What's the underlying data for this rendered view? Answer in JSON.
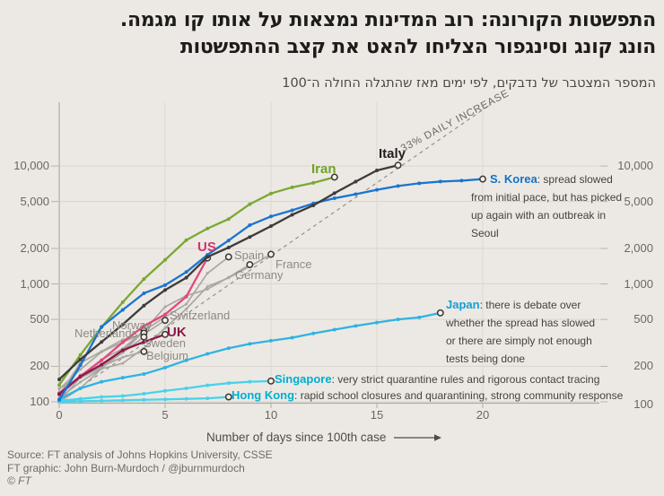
{
  "header": {
    "title_line1": "התפשטות הקורונה: רוב המדינות נמצאות על אותו קו מגמה.",
    "title_line2": "הונג קונג וסינגפור הצליחו להאט את קצב ההתפשטות",
    "subtitle": "המספר המצטבר של נדבקים, לפי ימים מאז שהתגלה החולה ה־100"
  },
  "source": {
    "line1": "Source: FT analysis of Johns Hopkins University, CSSE",
    "line2": "FT graphic: John Burn-Murdoch / @jburnmurdoch",
    "line3": "© FT"
  },
  "chart_data": {
    "type": "line",
    "y_scale": "log",
    "xlabel": "Number of days since 100th case",
    "xlim": [
      0,
      25.5
    ],
    "ylim": [
      100,
      36000
    ],
    "grid": true,
    "x_ticks": [
      {
        "v": 0,
        "label": "0"
      },
      {
        "v": 5,
        "label": "5"
      },
      {
        "v": 10,
        "label": "10"
      },
      {
        "v": 15,
        "label": "15"
      },
      {
        "v": 20,
        "label": "20"
      }
    ],
    "y_ticks": [
      {
        "v": 100,
        "label": "100"
      },
      {
        "v": 200,
        "label": "200"
      },
      {
        "v": 500,
        "label": "500"
      },
      {
        "v": 1000,
        "label": "1,000"
      },
      {
        "v": 2000,
        "label": "2,000"
      },
      {
        "v": 5000,
        "label": "5,000"
      },
      {
        "v": 10000,
        "label": "10,000"
      }
    ],
    "reference_line": {
      "label": "33% DAILY INCREASE",
      "daily_growth_pct": 33,
      "start_value": 100,
      "start_day": 0
    },
    "series": [
      {
        "id": "spain",
        "label": "Spain",
        "muted": true,
        "color": "#aaa7a2",
        "label_color": "#8d8983",
        "values": [
          120,
          165,
          228,
          282,
          401,
          525,
          674,
          1231,
          1695
        ]
      },
      {
        "id": "france",
        "label": "France",
        "muted": true,
        "color": "#aaa7a2",
        "label_color": "#8d8983",
        "values": [
          100,
          130,
          191,
          212,
          285,
          423,
          613,
          949,
          1126,
          1412,
          1784
        ]
      },
      {
        "id": "germany",
        "label": "Germany",
        "muted": true,
        "color": "#aaa7a2",
        "label_color": "#8d8983",
        "values": [
          130,
          159,
          196,
          262,
          400,
          639,
          795,
          902,
          1139,
          1457
        ]
      },
      {
        "id": "switzerland",
        "label": "Switzerland",
        "muted": true,
        "color": "#aaa7a2",
        "label_color": "#8d8983",
        "values": [
          114,
          214,
          268,
          337,
          374,
          491
        ]
      },
      {
        "id": "norway",
        "label": "Norway",
        "muted": true,
        "color": "#aaa7a2",
        "label_color": "#8d8983",
        "values": [
          108,
          147,
          192,
          277,
          400
        ]
      },
      {
        "id": "netherlands",
        "label": "Netherlands",
        "muted": true,
        "color": "#aaa7a2",
        "label_color": "#8d8983",
        "values": [
          128,
          188,
          265,
          321,
          382
        ]
      },
      {
        "id": "sweden",
        "label": "Sweden",
        "muted": true,
        "color": "#aaa7a2",
        "label_color": "#8d8983",
        "values": [
          101,
          161,
          203,
          261,
          355
        ]
      },
      {
        "id": "belgium",
        "label": "Belgium",
        "muted": true,
        "color": "#aaa7a2",
        "label_color": "#8d8983",
        "values": [
          109,
          169,
          200,
          239,
          267
        ]
      },
      {
        "id": "hongkong",
        "label": "Hong Kong",
        "color": "#49d2ea",
        "label_color": "#00afd0",
        "note": "rapid school closures and quarantining, strong community response",
        "values": [
          100,
          101,
          102,
          103,
          104,
          105,
          106,
          107,
          110
        ]
      },
      {
        "id": "singapore",
        "label": "Singapore",
        "color": "#49d2ea",
        "label_color": "#00afd0",
        "note": "very strict quarantine rules and rigorous contact tracing",
        "values": [
          102,
          106,
          110,
          112,
          117,
          124,
          130,
          138,
          144,
          148,
          150
        ]
      },
      {
        "id": "japan",
        "label": "Japan",
        "color": "#2fb3e2",
        "label_color": "#12a0d6",
        "note": "there is debate over whether the spread has slowed or there are simply not enough tests being done",
        "values": [
          105,
          130,
          148,
          160,
          172,
          195,
          225,
          255,
          285,
          310,
          330,
          350,
          380,
          410,
          440,
          470,
          500,
          520,
          568
        ]
      },
      {
        "id": "iran",
        "label": "Iran",
        "color": "#7ba832",
        "label_color": "#71a327",
        "values": [
          139,
          250,
          430,
          700,
          1100,
          1600,
          2350,
          2950,
          3550,
          4750,
          5850,
          6600,
          7200,
          8050
        ]
      },
      {
        "id": "us",
        "label": "US",
        "color": "#e2477e",
        "label_color": "#d2336e",
        "values": [
          118,
          165,
          225,
          320,
          440,
          550,
          780,
          1660
        ]
      },
      {
        "id": "uk",
        "label": "UK",
        "color": "#8e1847",
        "label_color": "#8e1847",
        "values": [
          116,
          164,
          207,
          274,
          322,
          373
        ]
      },
      {
        "id": "skorea",
        "label": "S. Korea",
        "color": "#1a74cf",
        "label_color": "#1272c8",
        "note": "spread slowed from initial pace, but has picked up again with an outbreak in Seoul",
        "values": [
          104,
          204,
          433,
          602,
          833,
          977,
          1261,
          1766,
          2337,
          3150,
          3736,
          4212,
          4812,
          5328,
          5766,
          6284,
          6767,
          7134,
          7382,
          7513,
          7755
        ]
      },
      {
        "id": "italy",
        "label": "Italy",
        "color": "#3e3c3a",
        "label_color": "#23211f",
        "values": [
          155,
          229,
          322,
          453,
          655,
          888,
          1128,
          1694,
          2036,
          2502,
          3089,
          3858,
          4636,
          5883,
          7375,
          9172,
          10149
        ]
      }
    ]
  }
}
